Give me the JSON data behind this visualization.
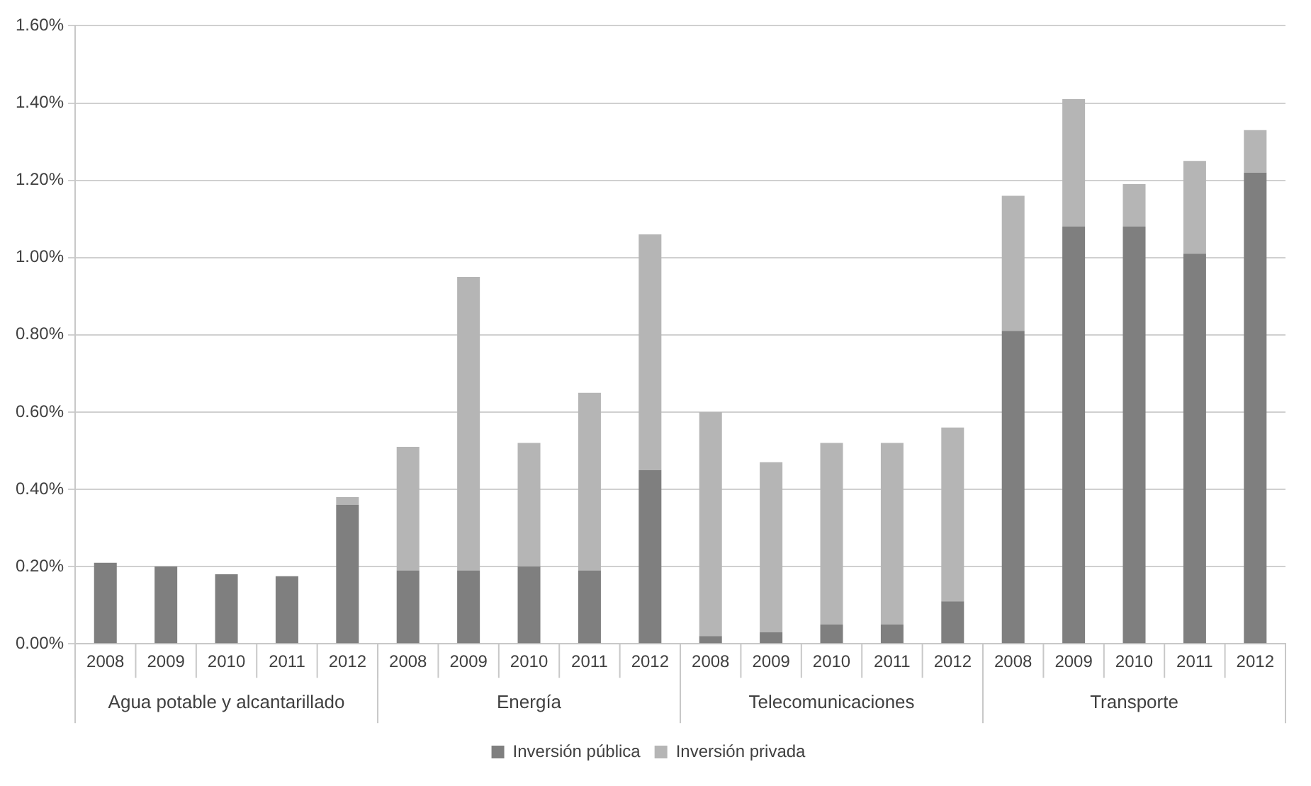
{
  "chart_data": {
    "type": "bar",
    "stacked": true,
    "categories": [
      "2008",
      "2009",
      "2010",
      "2011",
      "2012",
      "2008",
      "2009",
      "2010",
      "2011",
      "2012",
      "2008",
      "2009",
      "2010",
      "2011",
      "2012",
      "2008",
      "2009",
      "2010",
      "2011",
      "2012"
    ],
    "annotations": [
      "Agua potable y alcantarillado",
      "Energía",
      "Telecomunicaciones",
      "Transporte"
    ],
    "series": [
      {
        "name": "Inversión pública",
        "color": "#7f7f7f",
        "values": [
          0.21,
          0.2,
          0.18,
          0.175,
          0.36,
          0.19,
          0.19,
          0.2,
          0.19,
          0.45,
          0.02,
          0.03,
          0.05,
          0.05,
          0.11,
          0.81,
          1.08,
          1.08,
          1.01,
          1.22
        ]
      },
      {
        "name": "Inversión privada",
        "color": "#b5b5b5",
        "values": [
          0,
          0,
          0,
          0,
          0.02,
          0.32,
          0.76,
          0.32,
          0.46,
          0.61,
          0.58,
          0.44,
          0.47,
          0.47,
          0.45,
          0.35,
          0.33,
          0.11,
          0.24,
          0.11
        ]
      }
    ],
    "ylim": [
      0,
      1.6
    ],
    "yticks": [
      {
        "value": 0,
        "label": "0.00%"
      },
      {
        "value": 0.2,
        "label": "0.20%"
      },
      {
        "value": 0.4,
        "label": "0.40%"
      },
      {
        "value": 0.6,
        "label": "0.60%"
      },
      {
        "value": 0.8,
        "label": "0.80%"
      },
      {
        "value": 1.0,
        "label": "1.00%"
      },
      {
        "value": 1.2,
        "label": "1.20%"
      },
      {
        "value": 1.4,
        "label": "1.40%"
      },
      {
        "value": 1.6,
        "label": "1.60%"
      }
    ],
    "grid": "y",
    "legend": "bottom"
  }
}
